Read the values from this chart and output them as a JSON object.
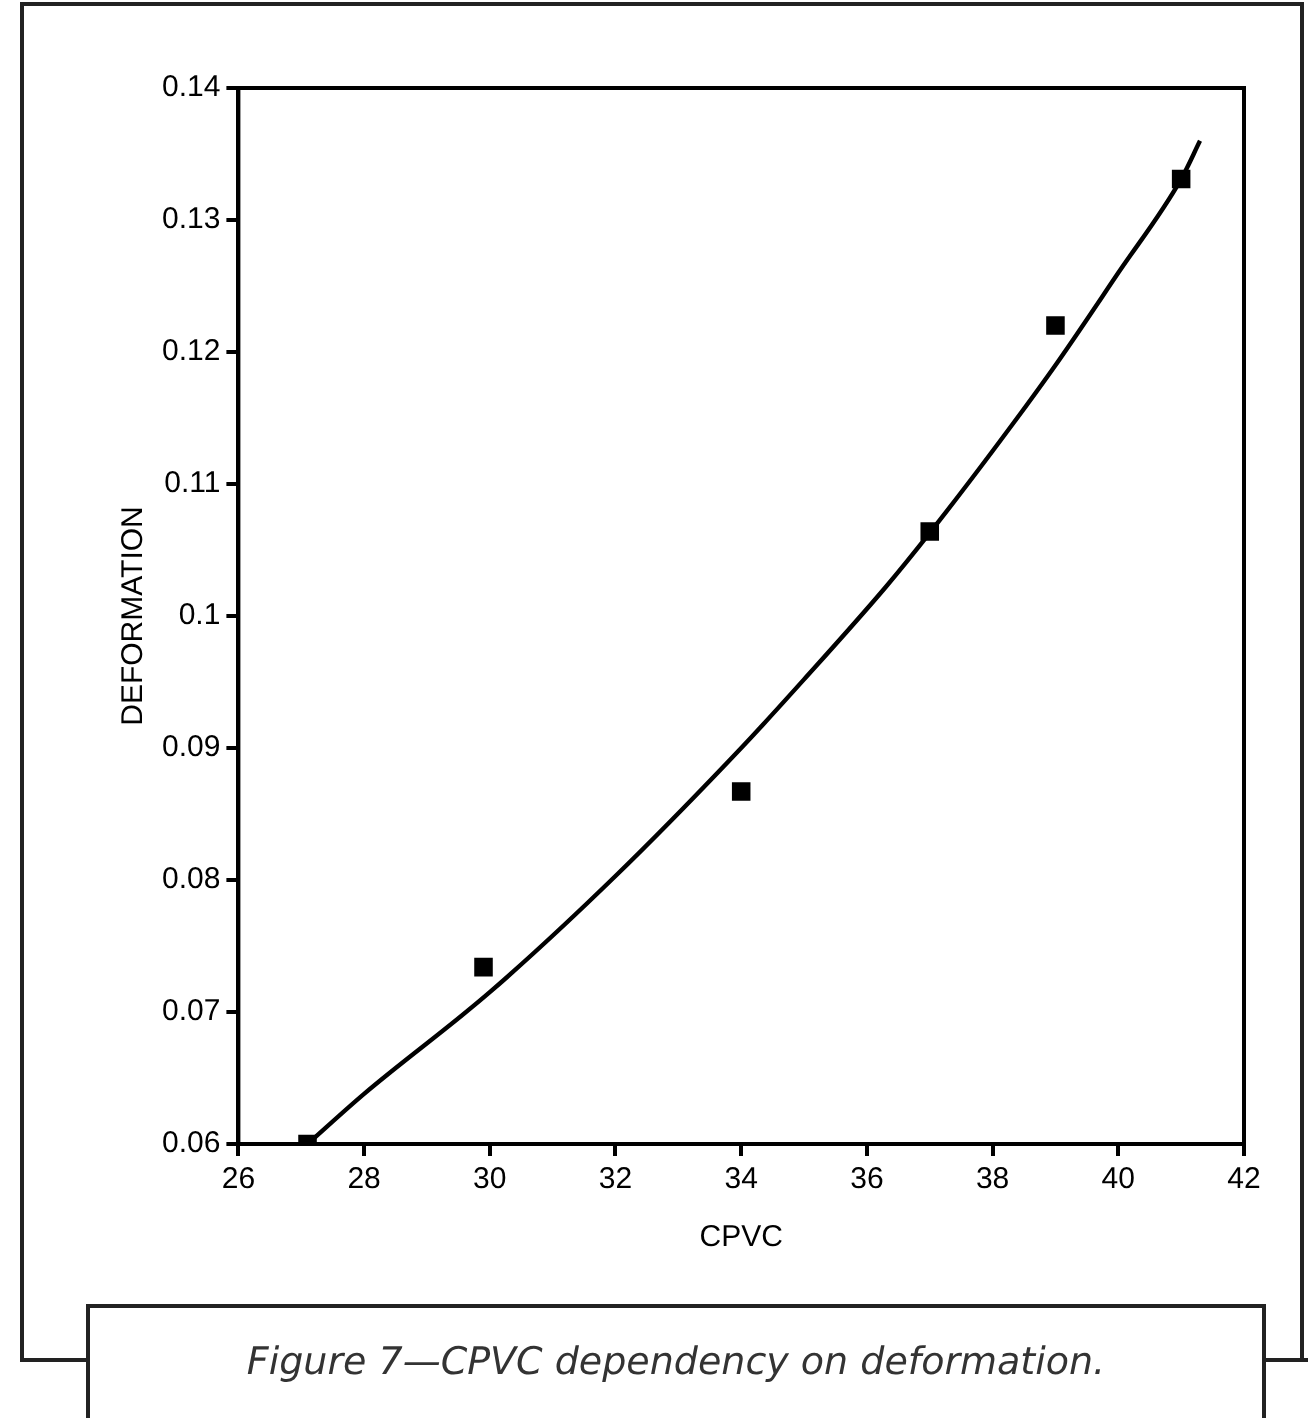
{
  "chart_data": {
    "type": "scatter",
    "xlabel": "CPVC",
    "ylabel": "DEFORMATION",
    "xlim": [
      26,
      42
    ],
    "xticks": [
      26,
      28,
      30,
      32,
      34,
      36,
      38,
      40,
      42
    ],
    "ylim": [
      0.06,
      0.14
    ],
    "yticks": [
      0.06,
      0.07,
      0.08,
      0.09,
      0.1,
      0.11,
      0.12,
      0.13,
      0.14
    ],
    "grid": false,
    "legend": false,
    "series": [
      {
        "type": "scatter",
        "color": "#000000",
        "marker": "square",
        "x": [
          27.1,
          29.9,
          34.0,
          37.0,
          39.0,
          41.0
        ],
        "values": [
          0.06,
          0.0734,
          0.0867,
          0.1064,
          0.122,
          0.1331
        ]
      },
      {
        "type": "line",
        "color": "#000000",
        "marker": "none",
        "x": [
          27.1,
          28,
          30,
          32,
          34,
          35,
          36.3,
          37,
          38,
          39,
          40,
          41,
          41.3
        ],
        "values": [
          0.06,
          0.0638,
          0.0715,
          0.0803,
          0.09,
          0.0952,
          0.1022,
          0.1063,
          0.1125,
          0.119,
          0.126,
          0.1331,
          0.136
        ]
      }
    ],
    "annotations": [
      "Figure 7—CPVC dependency on deformation."
    ]
  }
}
